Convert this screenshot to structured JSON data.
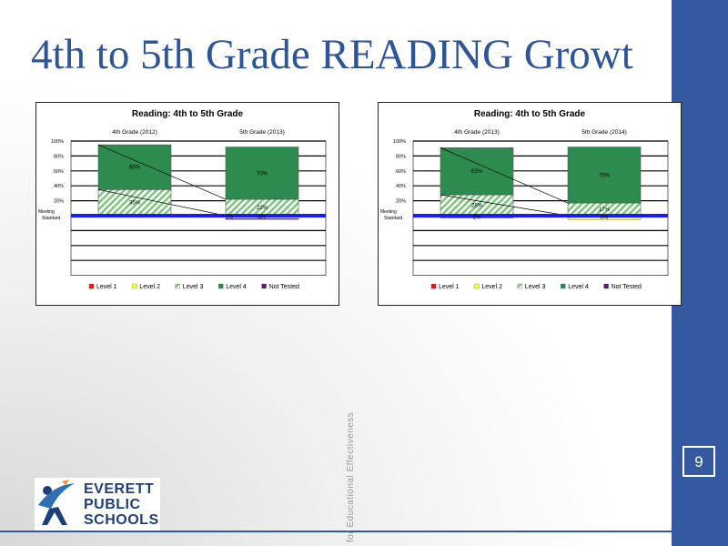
{
  "slide": {
    "title": "4th to 5th Grade READING Growt",
    "page_number": "9",
    "vertical_text": "for Educational Effectiveness",
    "logo_lines": [
      "EVERETT",
      "PUBLIC",
      "SCHOOLS"
    ]
  },
  "colors": {
    "accent": "#3559a0",
    "level1": "#e31a1c",
    "level2": "#ffff33",
    "level3": "#7fc47f",
    "level4": "#2e8b4f",
    "not_tested": "#5a1a6a",
    "meeting_standard": "#1a1aff"
  },
  "chart_data": [
    {
      "type": "bar",
      "title": "Reading: 4th to 5th Grade",
      "categories": [
        "4th Grade (2012)",
        "5th Grade (2013)"
      ],
      "series": [
        {
          "name": "Level 1",
          "values": [
            2,
            0
          ]
        },
        {
          "name": "Level 2",
          "values": [
            0,
            4
          ]
        },
        {
          "name": "Level 3",
          "values": [
            35,
            22
          ]
        },
        {
          "name": "Level 4",
          "values": [
            60,
            70
          ]
        },
        {
          "name": "Not Tested",
          "values": [
            0,
            1
          ]
        }
      ],
      "data_labels": [
        "60%",
        "35%",
        "70%",
        "22%",
        "4%",
        "1%"
      ],
      "y_ticks": [
        "100%",
        "80%",
        "60%",
        "40%",
        "20%"
      ],
      "meeting_standard_label": [
        "Meeting",
        "Standard"
      ],
      "ylim": [
        -80,
        100
      ]
    },
    {
      "type": "bar",
      "title": "Reading: 4th to 5th Grade",
      "categories": [
        "4th Grade (2013)",
        "5th Grade (2014)"
      ],
      "series": [
        {
          "name": "Level 1",
          "values": [
            2,
            0
          ]
        },
        {
          "name": "Level 2",
          "values": [
            0,
            5
          ]
        },
        {
          "name": "Level 3",
          "values": [
            28,
            17
          ]
        },
        {
          "name": "Level 4",
          "values": [
            63,
            75
          ]
        },
        {
          "name": "Not Tested",
          "values": [
            1,
            0
          ]
        }
      ],
      "data_labels": [
        "63%",
        "28%",
        "75%",
        "17%",
        "5%",
        "2%"
      ],
      "y_ticks": [
        "100%",
        "80%",
        "60%",
        "40%",
        "20%"
      ],
      "meeting_standard_label": [
        "Meeting",
        "Standard"
      ],
      "ylim": [
        -80,
        100
      ]
    }
  ]
}
